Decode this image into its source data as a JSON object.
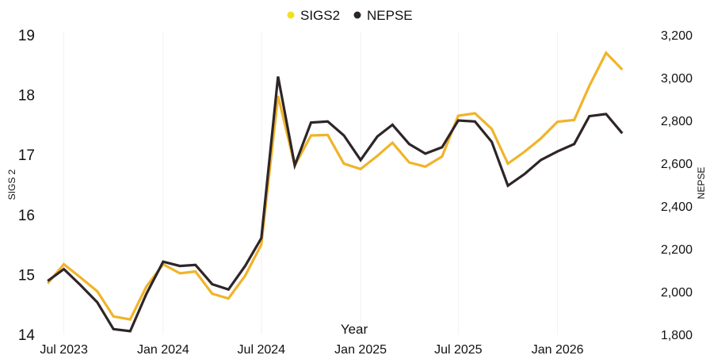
{
  "chart_data": {
    "type": "line",
    "legend": {
      "position": "top-center",
      "entries": [
        "SIGS2",
        "NEPSE"
      ]
    },
    "xlabel": "Year",
    "ylabel_left": "SIGS 2",
    "ylabel_right": "NEPSE",
    "xlim": [
      "2023-05-20",
      "2026-07-10"
    ],
    "ylim_left": [
      14,
      19
    ],
    "ylim_right": [
      1800,
      3200
    ],
    "x_ticks": [
      {
        "date": "2023-07-01",
        "label": "Jul 2023"
      },
      {
        "date": "2024-01-01",
        "label": "Jan 2024"
      },
      {
        "date": "2024-07-01",
        "label": "Jul 2024"
      },
      {
        "date": "2025-01-01",
        "label": "Jan 2025"
      },
      {
        "date": "2025-07-01",
        "label": "Jul 2025"
      },
      {
        "date": "2026-01-01",
        "label": "Jan 2026"
      }
    ],
    "y_ticks_left": [
      "14",
      "15",
      "16",
      "17",
      "18",
      "19"
    ],
    "y_ticks_right": [
      "1,800",
      "2,000",
      "2,200",
      "2,400",
      "2,600",
      "2,800",
      "3,000",
      "3,200"
    ],
    "grid": "vertical",
    "x": [
      "2023-06-01",
      "2023-07-01",
      "2023-08-01",
      "2023-09-01",
      "2023-10-01",
      "2023-11-01",
      "2023-12-01",
      "2024-01-01",
      "2024-02-01",
      "2024-03-01",
      "2024-04-01",
      "2024-05-01",
      "2024-06-01",
      "2024-07-01",
      "2024-08-01",
      "2024-09-01",
      "2024-10-01",
      "2024-11-01",
      "2024-12-01",
      "2025-01-01",
      "2025-02-01",
      "2025-03-01",
      "2025-04-01",
      "2025-05-01",
      "2025-06-01",
      "2025-07-01",
      "2025-08-01",
      "2025-09-01",
      "2025-10-01",
      "2025-11-01",
      "2025-12-01",
      "2026-01-01",
      "2026-02-01",
      "2026-03-01",
      "2026-04-01",
      "2026-05-01"
    ],
    "series": [
      {
        "name": "SIGS2",
        "axis": "left",
        "color": "#f0b429",
        "values": [
          14.85,
          15.17,
          14.95,
          14.72,
          14.3,
          14.25,
          14.8,
          15.17,
          15.02,
          15.05,
          14.68,
          14.6,
          14.98,
          15.5,
          17.98,
          16.82,
          17.32,
          17.33,
          16.85,
          16.76,
          16.98,
          17.2,
          16.87,
          16.8,
          16.97,
          17.65,
          17.69,
          17.43,
          16.85,
          17.05,
          17.27,
          17.55,
          17.58,
          18.15,
          18.7,
          18.42
        ]
      },
      {
        "name": "NEPSE",
        "axis": "right",
        "color": "#2e2528",
        "values": [
          2050,
          2105,
          2030,
          1950,
          1825,
          1815,
          1990,
          2140,
          2120,
          2125,
          2035,
          2010,
          2120,
          2250,
          3005,
          2590,
          2790,
          2795,
          2730,
          2615,
          2725,
          2780,
          2690,
          2645,
          2675,
          2800,
          2795,
          2700,
          2495,
          2550,
          2615,
          2655,
          2690,
          2820,
          2830,
          2740
        ]
      }
    ]
  }
}
